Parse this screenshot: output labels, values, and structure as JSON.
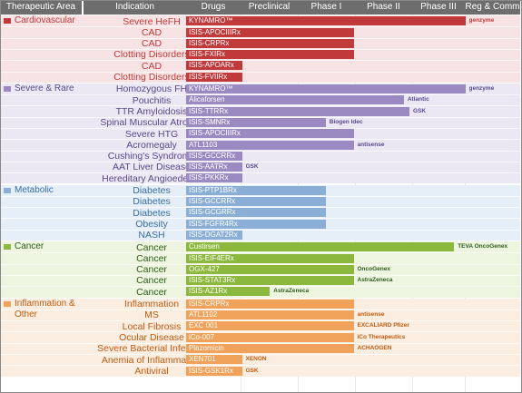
{
  "chart_data": {
    "type": "bar",
    "columns": [
      "Therapeutic Area",
      "Indication",
      "Drugs",
      "Preclinical",
      "Phase I",
      "Phase II",
      "Phase III",
      "Reg & Comm"
    ],
    "stages": [
      "Preclinical",
      "Phase I",
      "Phase II",
      "Phase III",
      "Reg & Comm"
    ],
    "areas": [
      {
        "name": "Cardiovascular",
        "color": "#c0393b",
        "band": "#f7e3e3",
        "label_color": "#c0393b",
        "rows": [
          {
            "indication": "Severe HeFH",
            "drug": "KYNAMRO™",
            "stage": 5.0,
            "partner": "genzyme"
          },
          {
            "indication": "CAD",
            "drug": "ISIS-APOCIIIRx",
            "stage": 3.0,
            "partner": ""
          },
          {
            "indication": "CAD",
            "drug": "ISIS-CRPRx",
            "stage": 3.0,
            "partner": ""
          },
          {
            "indication": "Clotting Disorders",
            "drug": "ISIS-FXIRx",
            "stage": 3.0,
            "partner": ""
          },
          {
            "indication": "CAD",
            "drug": "ISIS-APOARx",
            "stage": 1.0,
            "partner": ""
          },
          {
            "indication": "Clotting Disorders",
            "drug": "ISIS-FVIIRx",
            "stage": 1.0,
            "partner": ""
          }
        ]
      },
      {
        "name": "Severe & Rare",
        "color": "#9b8ac2",
        "band": "#ebe7f3",
        "label_color": "#5a4a8a",
        "rows": [
          {
            "indication": "Homozygous FH",
            "drug": "KYNAMRO™",
            "stage": 5.0,
            "partner": "genzyme"
          },
          {
            "indication": "Pouchitis",
            "drug": "Alicaforsen",
            "stage": 3.9,
            "partner": "Atlantic"
          },
          {
            "indication": "TTR Amyloidosis",
            "drug": "ISIS-TTRRx",
            "stage": 4.0,
            "partner": "GSK"
          },
          {
            "indication": "Spinal Muscular Atrophy",
            "drug": "ISIS-SMNRx",
            "stage": 2.5,
            "partner": "Biogen Idec"
          },
          {
            "indication": "Severe HTG",
            "drug": "ISIS-APOCIIIRx",
            "stage": 3.0,
            "partner": ""
          },
          {
            "indication": "Acromegaly",
            "drug": "ATL1103",
            "stage": 3.0,
            "partner": "antisense"
          },
          {
            "indication": "Cushing's Syndrome",
            "drug": "ISIS-GCCRRx",
            "stage": 1.0,
            "partner": ""
          },
          {
            "indication": "AAT Liver Disease",
            "drug": "ISIS-AATRx",
            "stage": 1.0,
            "partner": "GSK"
          },
          {
            "indication": "Hereditary Angioedema",
            "drug": "ISIS-PKKRx",
            "stage": 1.0,
            "partner": ""
          }
        ]
      },
      {
        "name": "Metabolic",
        "color": "#8aaed6",
        "band": "#e6eef8",
        "label_color": "#3a6ea5",
        "rows": [
          {
            "indication": "Diabetes",
            "drug": "ISIS-PTP1BRx",
            "stage": 2.5,
            "partner": ""
          },
          {
            "indication": "Diabetes",
            "drug": "ISIS-GCCRRx",
            "stage": 2.5,
            "partner": ""
          },
          {
            "indication": "Diabetes",
            "drug": "ISIS-GCGRRx",
            "stage": 2.5,
            "partner": ""
          },
          {
            "indication": "Obesity",
            "drug": "ISIS-FGFR4Rx",
            "stage": 2.5,
            "partner": ""
          },
          {
            "indication": "NASH",
            "drug": "ISIS-DGAT2Rx",
            "stage": 1.0,
            "partner": ""
          }
        ]
      },
      {
        "name": "Cancer",
        "color": "#8cb83e",
        "band": "#edf4e0",
        "label_color": "#2f5d1a",
        "rows": [
          {
            "indication": "Cancer",
            "drug": "Custirsen",
            "stage": 4.8,
            "partner": "TEVA OncoGenex"
          },
          {
            "indication": "Cancer",
            "drug": "ISIS-EIF4ERx",
            "stage": 3.0,
            "partner": ""
          },
          {
            "indication": "Cancer",
            "drug": "OGX-427",
            "stage": 3.0,
            "partner": "OncoGenex"
          },
          {
            "indication": "Cancer",
            "drug": "ISIS-STAT3Rx",
            "stage": 3.0,
            "partner": "AstraZeneca"
          },
          {
            "indication": "Cancer",
            "drug": "ISIS-AZ1Rx",
            "stage": 1.5,
            "partner": "AstraZeneca"
          }
        ]
      },
      {
        "name": "Inflammation & Other",
        "color": "#f0a25a",
        "band": "#fbeee0",
        "label_color": "#c05a10",
        "rows": [
          {
            "indication": "Inflammation",
            "drug": "ISIS-CRPRx",
            "stage": 3.0,
            "partner": ""
          },
          {
            "indication": "MS",
            "drug": "ATL1102",
            "stage": 3.0,
            "partner": "antisense"
          },
          {
            "indication": "Local Fibrosis",
            "drug": "EXC 001",
            "stage": 3.0,
            "partner": "EXCALIARD Pfizer"
          },
          {
            "indication": "Ocular Disease",
            "drug": "iCo-007",
            "stage": 3.0,
            "partner": "iCo Therapeutics"
          },
          {
            "indication": "Severe Bacterial Infection",
            "drug": "Plazomicin",
            "stage": 3.0,
            "partner": "ACHAOGEN"
          },
          {
            "indication": "Anemia of Inflammation",
            "drug": "XEN701",
            "stage": 1.0,
            "partner": "XENON"
          },
          {
            "indication": "Antiviral",
            "drug": "ISIS-GSK1Rx",
            "stage": 1.0,
            "partner": "GSK"
          }
        ]
      }
    ]
  }
}
